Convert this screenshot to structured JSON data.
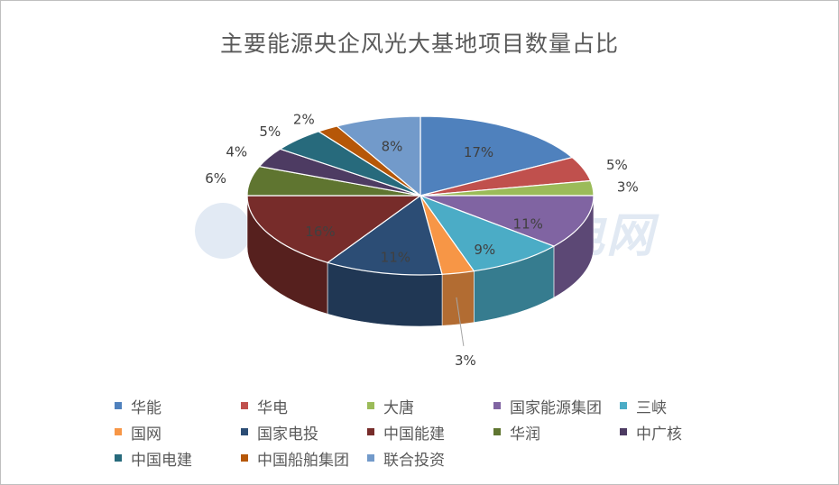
{
  "chart_data": {
    "type": "pie",
    "title": "主要能源央企风光大基地项目数量占比",
    "watermark": "北极星风力发电网",
    "slices": [
      {
        "name": "华能",
        "label": "17%",
        "value": 17,
        "color": "#4F81BD"
      },
      {
        "name": "华电",
        "label": "5%",
        "value": 5,
        "color": "#C0504D"
      },
      {
        "name": "大唐",
        "label": "3%",
        "value": 3,
        "color": "#9BBB59"
      },
      {
        "name": "国家能源集团",
        "label": "11%",
        "value": 11,
        "color": "#8064A2"
      },
      {
        "name": "三峡",
        "label": "9%",
        "value": 9,
        "color": "#4BACC6"
      },
      {
        "name": "国网",
        "label": "3%",
        "value": 3,
        "color": "#F79646"
      },
      {
        "name": "国家电投",
        "label": "11%",
        "value": 11,
        "color": "#2C4D75"
      },
      {
        "name": "中国能建",
        "label": "16%",
        "value": 16,
        "color": "#772C2A"
      },
      {
        "name": "华润",
        "label": "6%",
        "value": 6,
        "color": "#5F7530"
      },
      {
        "name": "中广核",
        "label": "4%",
        "value": 4,
        "color": "#4D3B62"
      },
      {
        "name": "中国电建",
        "label": "5%",
        "value": 5,
        "color": "#276A7C"
      },
      {
        "name": "中国船舶集团",
        "label": "2%",
        "value": 2,
        "color": "#B65708"
      },
      {
        "name": "联合投资",
        "label": "8%",
        "value": 8,
        "color": "#729ACA"
      }
    ],
    "legend_position": "bottom"
  }
}
